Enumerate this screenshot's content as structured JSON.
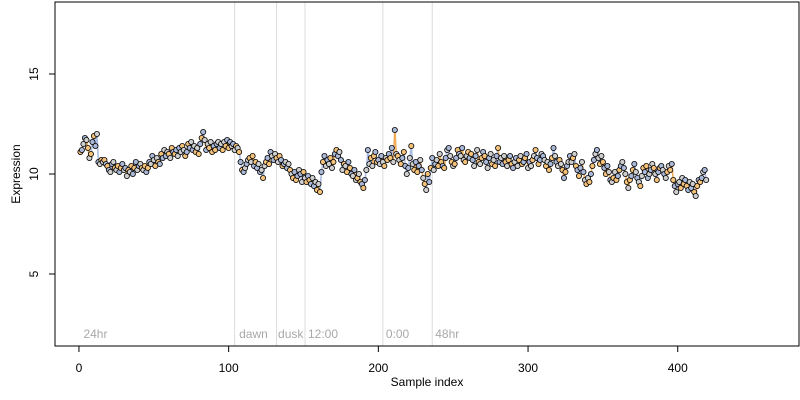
{
  "chart_data": {
    "type": "scatter",
    "xlabel": "Sample index",
    "ylabel": "Expression",
    "xlim": [
      -16,
      481
    ],
    "ylim": [
      1.4,
      18.6
    ],
    "x_ticks": [
      0,
      100,
      200,
      300,
      400
    ],
    "y_ticks": [
      5,
      10,
      15
    ],
    "grid": false,
    "legend": "none",
    "colors": {
      "point_fill_a": "#f5c27a",
      "point_fill_b": "#aab8d8",
      "point_fill_c": "#cfcfcf",
      "line_orange": "#f0a040",
      "line_blue": "#9fb3de",
      "separator": "#dcdcdc",
      "annotation": "#a8a8a8"
    },
    "separators": [
      104,
      132,
      151,
      203,
      236
    ],
    "annotations": [
      {
        "x": 3,
        "text": "24hr"
      },
      {
        "x": 107,
        "text": "dawn"
      },
      {
        "x": 133,
        "text": "dusk"
      },
      {
        "x": 153,
        "text": "12:00"
      },
      {
        "x": 205,
        "text": "0:00"
      },
      {
        "x": 238,
        "text": "48hr"
      }
    ],
    "series": [
      {
        "x0": 1,
        "values": [
          11.1,
          11.2,
          11.5,
          11.8,
          11.7,
          11.3,
          10.8,
          11.0,
          11.6,
          11.9,
          11.4,
          12.0,
          10.6,
          10.5,
          10.7,
          10.6,
          10.7,
          10.5,
          10.4,
          10.2,
          10.1,
          10.5,
          10.6,
          10.3,
          10.2,
          10.4,
          10.1,
          10.3,
          10.5,
          10.2,
          10.3,
          9.9,
          10.2,
          10.1,
          10.4,
          10.0,
          10.3,
          10.6,
          10.2,
          10.4,
          10.5,
          10.3,
          10.2,
          10.4,
          10.1,
          10.3,
          10.6,
          10.5,
          10.9,
          10.7,
          10.4,
          10.8,
          10.6,
          10.5,
          11.0,
          10.8,
          11.2,
          10.9,
          11.1,
          11.0,
          10.8,
          11.3,
          11.1,
          11.0,
          11.2,
          10.9,
          11.3,
          11.1,
          11.4,
          11.2,
          10.9,
          11.1,
          11.5,
          11.3,
          11.6,
          11.2,
          11.4,
          11.1,
          11.3,
          11.0,
          11.5,
          11.8,
          12.1,
          11.7,
          11.2,
          11.5,
          11.3,
          11.6,
          11.1,
          11.4,
          11.2,
          11.5,
          11.6,
          11.3,
          11.5,
          11.2,
          11.6,
          11.4,
          11.7,
          11.3,
          11.6,
          11.4,
          11.5,
          11.2,
          11.4,
          11.3,
          11.1,
          10.6,
          10.2,
          10.1,
          10.3,
          10.5,
          10.7,
          10.8,
          10.6,
          10.9,
          10.4,
          10.6,
          10.3,
          10.5,
          10.1,
          10.2,
          9.8,
          10.4,
          10.6,
          10.8,
          10.5,
          11.1,
          10.9,
          10.7,
          11.0,
          10.8,
          10.6,
          10.9,
          10.7,
          10.4,
          10.5,
          10.6,
          10.3,
          10.5,
          10.2,
          10.0,
          9.8,
          10.1,
          9.7,
          9.9,
          10.2,
          10.0,
          9.6,
          10.1,
          9.8,
          9.6,
          9.9,
          9.7,
          9.5,
          9.8,
          9.4,
          9.6,
          9.2,
          9.5,
          9.1,
          10.1,
          10.6,
          10.9,
          10.4,
          10.7,
          10.5,
          10.8,
          10.3,
          10.6,
          11.0,
          11.2,
          10.9,
          11.1,
          10.7,
          10.2,
          10.5,
          10.4,
          10.1,
          10.6,
          10.3,
          10.0,
          9.9,
          10.2,
          9.7,
          9.8,
          10.0,
          9.6,
          9.5,
          9.3,
          9.7,
          10.2,
          11.2,
          10.5,
          10.8,
          10.4,
          10.9,
          11.1,
          10.6,
          10.7,
          10.5,
          10.9,
          10.6,
          10.4,
          10.8,
          10.7,
          11.0,
          10.8,
          11.3,
          10.6,
          12.2,
          11.0,
          10.9,
          10.7,
          10.5,
          10.8,
          11.1,
          10.4,
          10.0,
          10.3,
          10.8,
          11.4,
          10.5,
          10.2,
          10.6,
          10.1,
          10.4,
          10.7,
          10.2,
          9.8,
          9.5,
          9.2,
          10.0,
          9.6,
          10.3,
          10.8,
          10.2,
          10.5,
          10.7,
          10.4,
          11.0,
          10.6,
          10.4,
          10.3,
          10.8,
          11.2,
          11.3,
          10.9,
          10.6,
          10.4,
          10.5,
          10.8,
          11.2,
          11.0,
          10.9,
          11.3,
          10.7,
          10.6,
          10.9,
          11.1,
          10.8,
          11.0,
          10.7,
          10.4,
          10.9,
          11.2,
          10.6,
          10.5,
          10.8,
          11.1,
          10.9,
          10.6,
          10.3,
          10.8,
          11.0,
          10.5,
          10.7,
          10.4,
          10.9,
          11.3,
          10.6,
          10.8,
          10.5,
          10.9,
          10.6,
          10.4,
          10.7,
          10.9,
          10.5,
          10.3,
          10.6,
          10.8,
          10.4,
          10.7,
          10.9,
          10.5,
          10.6,
          10.8,
          11.0,
          10.3,
          10.6,
          10.4,
          10.7,
          10.9,
          11.2,
          10.8,
          10.5,
          10.7,
          11.0,
          10.9,
          10.7,
          10.4,
          10.6,
          10.2,
          10.5,
          10.8,
          11.3,
          10.9,
          10.6,
          10.4,
          10.7,
          10.5,
          10.2,
          9.8,
          10.1,
          10.4,
          10.6,
          10.9,
          10.6,
          10.8,
          11.0,
          10.4,
          10.2,
          9.9,
          10.3,
          10.6,
          10.1,
          9.7,
          9.5,
          9.8,
          9.6,
          10.0,
          10.4,
          10.7,
          11.0,
          11.2,
          10.8,
          10.5,
          10.9,
          10.6,
          10.3,
          10.0,
          10.4,
          10.1,
          9.7,
          9.6,
          9.8,
          10.1,
          9.7,
          9.9,
          10.2,
          10.4,
          10.6,
          10.3,
          10.0,
          9.6,
          9.3,
          9.7,
          9.9,
          10.2,
          10.5,
          10.1,
          9.8,
          9.6,
          9.4,
          9.9,
          10.3,
          10.1,
          10.4,
          9.8,
          10.0,
          10.2,
          10.5,
          10.3,
          10.0,
          9.7,
          10.1,
          10.3,
          10.4,
          10.2,
          10.0,
          9.8,
          10.1,
          10.4,
          10.2,
          10.5,
          9.7,
          9.4,
          9.1,
          9.5,
          9.6,
          9.3,
          9.8,
          9.5,
          9.7,
          9.4,
          9.2,
          9.6,
          9.3,
          9.5,
          9.1,
          8.9,
          9.4,
          9.7,
          9.6,
          9.8,
          10.1,
          10.2,
          9.7
        ]
      }
    ]
  }
}
